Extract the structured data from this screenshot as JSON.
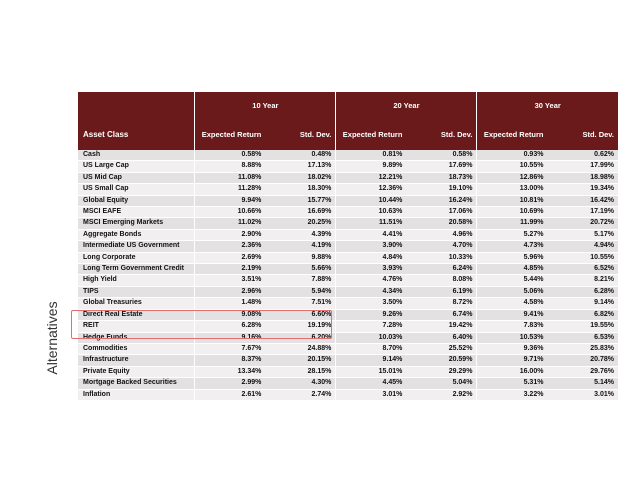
{
  "side_label": "Alternatives",
  "table": {
    "groups": [
      "10 Year",
      "20 Year",
      "30 Year"
    ],
    "col_headers": {
      "asset": "Asset Class",
      "expected": "Expected Return",
      "stddev": "Std. Dev."
    },
    "rows": [
      {
        "asset": "Cash",
        "v": [
          "0.58%",
          "0.48%",
          "0.81%",
          "0.58%",
          "0.93%",
          "0.62%"
        ]
      },
      {
        "asset": "US Large Cap",
        "v": [
          "8.88%",
          "17.13%",
          "9.89%",
          "17.69%",
          "10.55%",
          "17.99%"
        ]
      },
      {
        "asset": "US Mid Cap",
        "v": [
          "11.08%",
          "18.02%",
          "12.21%",
          "18.73%",
          "12.86%",
          "18.98%"
        ]
      },
      {
        "asset": "US Small Cap",
        "v": [
          "11.28%",
          "18.30%",
          "12.36%",
          "19.10%",
          "13.00%",
          "19.34%"
        ]
      },
      {
        "asset": "Global Equity",
        "v": [
          "9.94%",
          "15.77%",
          "10.44%",
          "16.24%",
          "10.81%",
          "16.42%"
        ]
      },
      {
        "asset": "MSCI EAFE",
        "v": [
          "10.66%",
          "16.69%",
          "10.63%",
          "17.06%",
          "10.69%",
          "17.19%"
        ]
      },
      {
        "asset": "MSCI Emerging Markets",
        "v": [
          "11.02%",
          "20.25%",
          "11.51%",
          "20.58%",
          "11.99%",
          "20.72%"
        ]
      },
      {
        "asset": "Aggregate Bonds",
        "v": [
          "2.90%",
          "4.39%",
          "4.41%",
          "4.96%",
          "5.27%",
          "5.17%"
        ]
      },
      {
        "asset": "Intermediate US Government",
        "v": [
          "2.36%",
          "4.19%",
          "3.90%",
          "4.70%",
          "4.73%",
          "4.94%"
        ]
      },
      {
        "asset": "Long Corporate",
        "v": [
          "2.69%",
          "9.88%",
          "4.84%",
          "10.33%",
          "5.96%",
          "10.55%"
        ]
      },
      {
        "asset": "Long Term Government Credit",
        "v": [
          "2.19%",
          "5.66%",
          "3.93%",
          "6.24%",
          "4.85%",
          "6.52%"
        ]
      },
      {
        "asset": "High Yield",
        "v": [
          "3.51%",
          "7.88%",
          "4.76%",
          "8.08%",
          "5.44%",
          "8.21%"
        ]
      },
      {
        "asset": "TIPS",
        "v": [
          "2.96%",
          "5.94%",
          "4.34%",
          "6.19%",
          "5.06%",
          "6.28%"
        ]
      },
      {
        "asset": "Global Treasuries",
        "v": [
          "1.48%",
          "7.51%",
          "3.50%",
          "8.72%",
          "4.58%",
          "9.14%"
        ]
      },
      {
        "asset": "Direct Real Estate",
        "v": [
          "9.08%",
          "6.60%",
          "9.26%",
          "6.74%",
          "9.41%",
          "6.82%"
        ]
      },
      {
        "asset": "REIT",
        "v": [
          "6.28%",
          "19.19%",
          "7.28%",
          "19.42%",
          "7.83%",
          "19.55%"
        ]
      },
      {
        "asset": "Hedge Funds",
        "v": [
          "9.16%",
          "6.20%",
          "10.03%",
          "6.40%",
          "10.53%",
          "6.53%"
        ]
      },
      {
        "asset": "Commodities",
        "v": [
          "7.67%",
          "24.88%",
          "8.70%",
          "25.52%",
          "9.36%",
          "25.83%"
        ]
      },
      {
        "asset": "Infrastructure",
        "v": [
          "8.37%",
          "20.15%",
          "9.14%",
          "20.59%",
          "9.71%",
          "20.78%"
        ]
      },
      {
        "asset": "Private Equity",
        "v": [
          "13.34%",
          "28.15%",
          "15.01%",
          "29.29%",
          "16.00%",
          "29.76%"
        ]
      },
      {
        "asset": "Mortgage Backed Securities",
        "v": [
          "2.99%",
          "4.30%",
          "4.45%",
          "5.04%",
          "5.31%",
          "5.14%"
        ]
      },
      {
        "asset": "Inflation",
        "v": [
          "2.61%",
          "2.74%",
          "3.01%",
          "2.92%",
          "3.22%",
          "3.01%"
        ]
      }
    ]
  },
  "colors": {
    "header_bg": "#6b1a1c",
    "row_odd": "#e4e1e3",
    "row_even": "#f1eff0",
    "highlight": "#e07070"
  }
}
